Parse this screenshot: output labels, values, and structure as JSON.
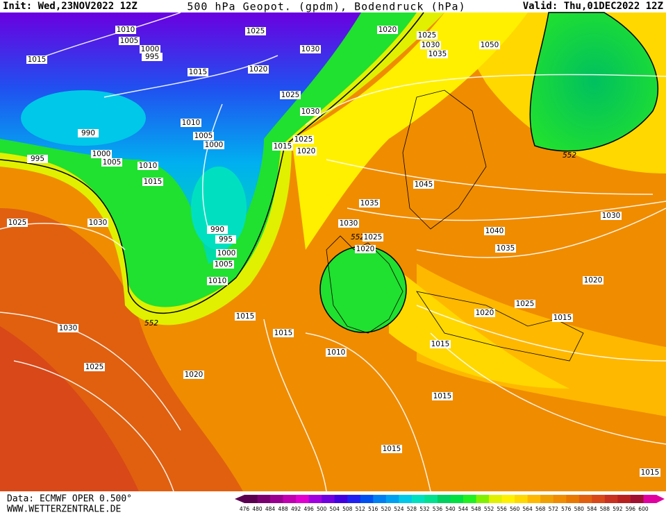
{
  "header": {
    "init": "Init: Wed,23NOV2022 12Z",
    "title": "500 hPa Geopot. (gpdm), Bodendruck (hPa)",
    "valid": "Valid: Thu,01DEC2022 12Z"
  },
  "isobar_labels": [
    1010,
    1005,
    1000,
    995,
    1015,
    1025,
    1030,
    1020,
    1015,
    1020,
    1025,
    1030,
    1035,
    1050,
    1025,
    1030,
    1010,
    990,
    1005,
    1000,
    1025,
    1015,
    1020,
    1000,
    1005,
    995,
    1010,
    1015,
    552,
    1045,
    1035,
    1025,
    1030,
    1030,
    552,
    1025,
    1020,
    1040,
    1030,
    1035,
    990,
    995,
    1000,
    1005,
    1010,
    1020,
    1025,
    1020,
    1015,
    1015,
    552,
    1015,
    1030,
    1015,
    1010,
    1025,
    1020,
    1015,
    1015,
    1015
  ],
  "footer": {
    "source": "Data: ECMWF OPER 0.500°",
    "site": "WWW.WETTERZENTRALE.DE"
  },
  "colorbar": {
    "levels": [
      476,
      480,
      484,
      488,
      492,
      496,
      500,
      504,
      508,
      512,
      516,
      520,
      524,
      528,
      532,
      536,
      540,
      544,
      548,
      552,
      556,
      560,
      564,
      568,
      572,
      576,
      580,
      584,
      588,
      592,
      596,
      600
    ],
    "colors": [
      "#5a0050",
      "#7a0070",
      "#9a0090",
      "#c000b0",
      "#e000d0",
      "#a000e0",
      "#7000e0",
      "#4000e0",
      "#2020f0",
      "#0050f0",
      "#0080f0",
      "#00a0f0",
      "#00c8e8",
      "#00e0c0",
      "#00e090",
      "#00d060",
      "#00e040",
      "#20f020",
      "#80f000",
      "#e0f000",
      "#fff000",
      "#ffd800",
      "#ffb800",
      "#f0a000",
      "#f08c00",
      "#e87800",
      "#e06010",
      "#d84818",
      "#c83020",
      "#b82020",
      "#a01030",
      "#e000a0"
    ]
  }
}
